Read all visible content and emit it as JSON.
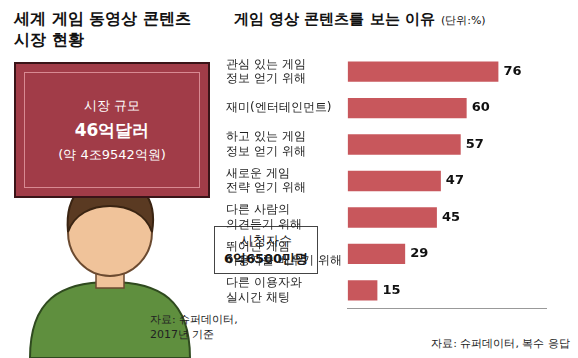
{
  "infographic": {
    "title": "세계 게임 동영상 콘텐츠\n시장 현황",
    "market_size": {
      "label": "시장 규모",
      "value": "46억달러",
      "note": "(약 4조9542억원)"
    },
    "viewers": {
      "label": "시청자수",
      "value": "6억6500만명"
    },
    "source": "자료: 슈퍼데이터,\n2017년 기준"
  },
  "chart_data": {
    "type": "bar",
    "orientation": "horizontal",
    "title": "게임 영상 콘텐츠를 보는 이유",
    "subtitle": "(단위:%)",
    "annotations": [
      "자료: 슈퍼데이터, 복수 응답"
    ],
    "categories": [
      "관심 있는 게임\n정보 얻기 위해",
      "재미(엔터테인먼트)",
      "하고 있는 게임\n정보 얻기 위해",
      "새로운 게임\n전략 얻기 위해",
      "다른 사람의\n의견듣기 위해",
      "뛰어난 게임\n이용자를 배우기 위해",
      "다른 이용자와\n실시간 채팅"
    ],
    "values": [
      76,
      60,
      57,
      47,
      45,
      29,
      15
    ],
    "color": "#c8575c",
    "xlim": [
      0,
      100
    ],
    "grid": false,
    "data_labels": true,
    "tick_labels": "y"
  }
}
